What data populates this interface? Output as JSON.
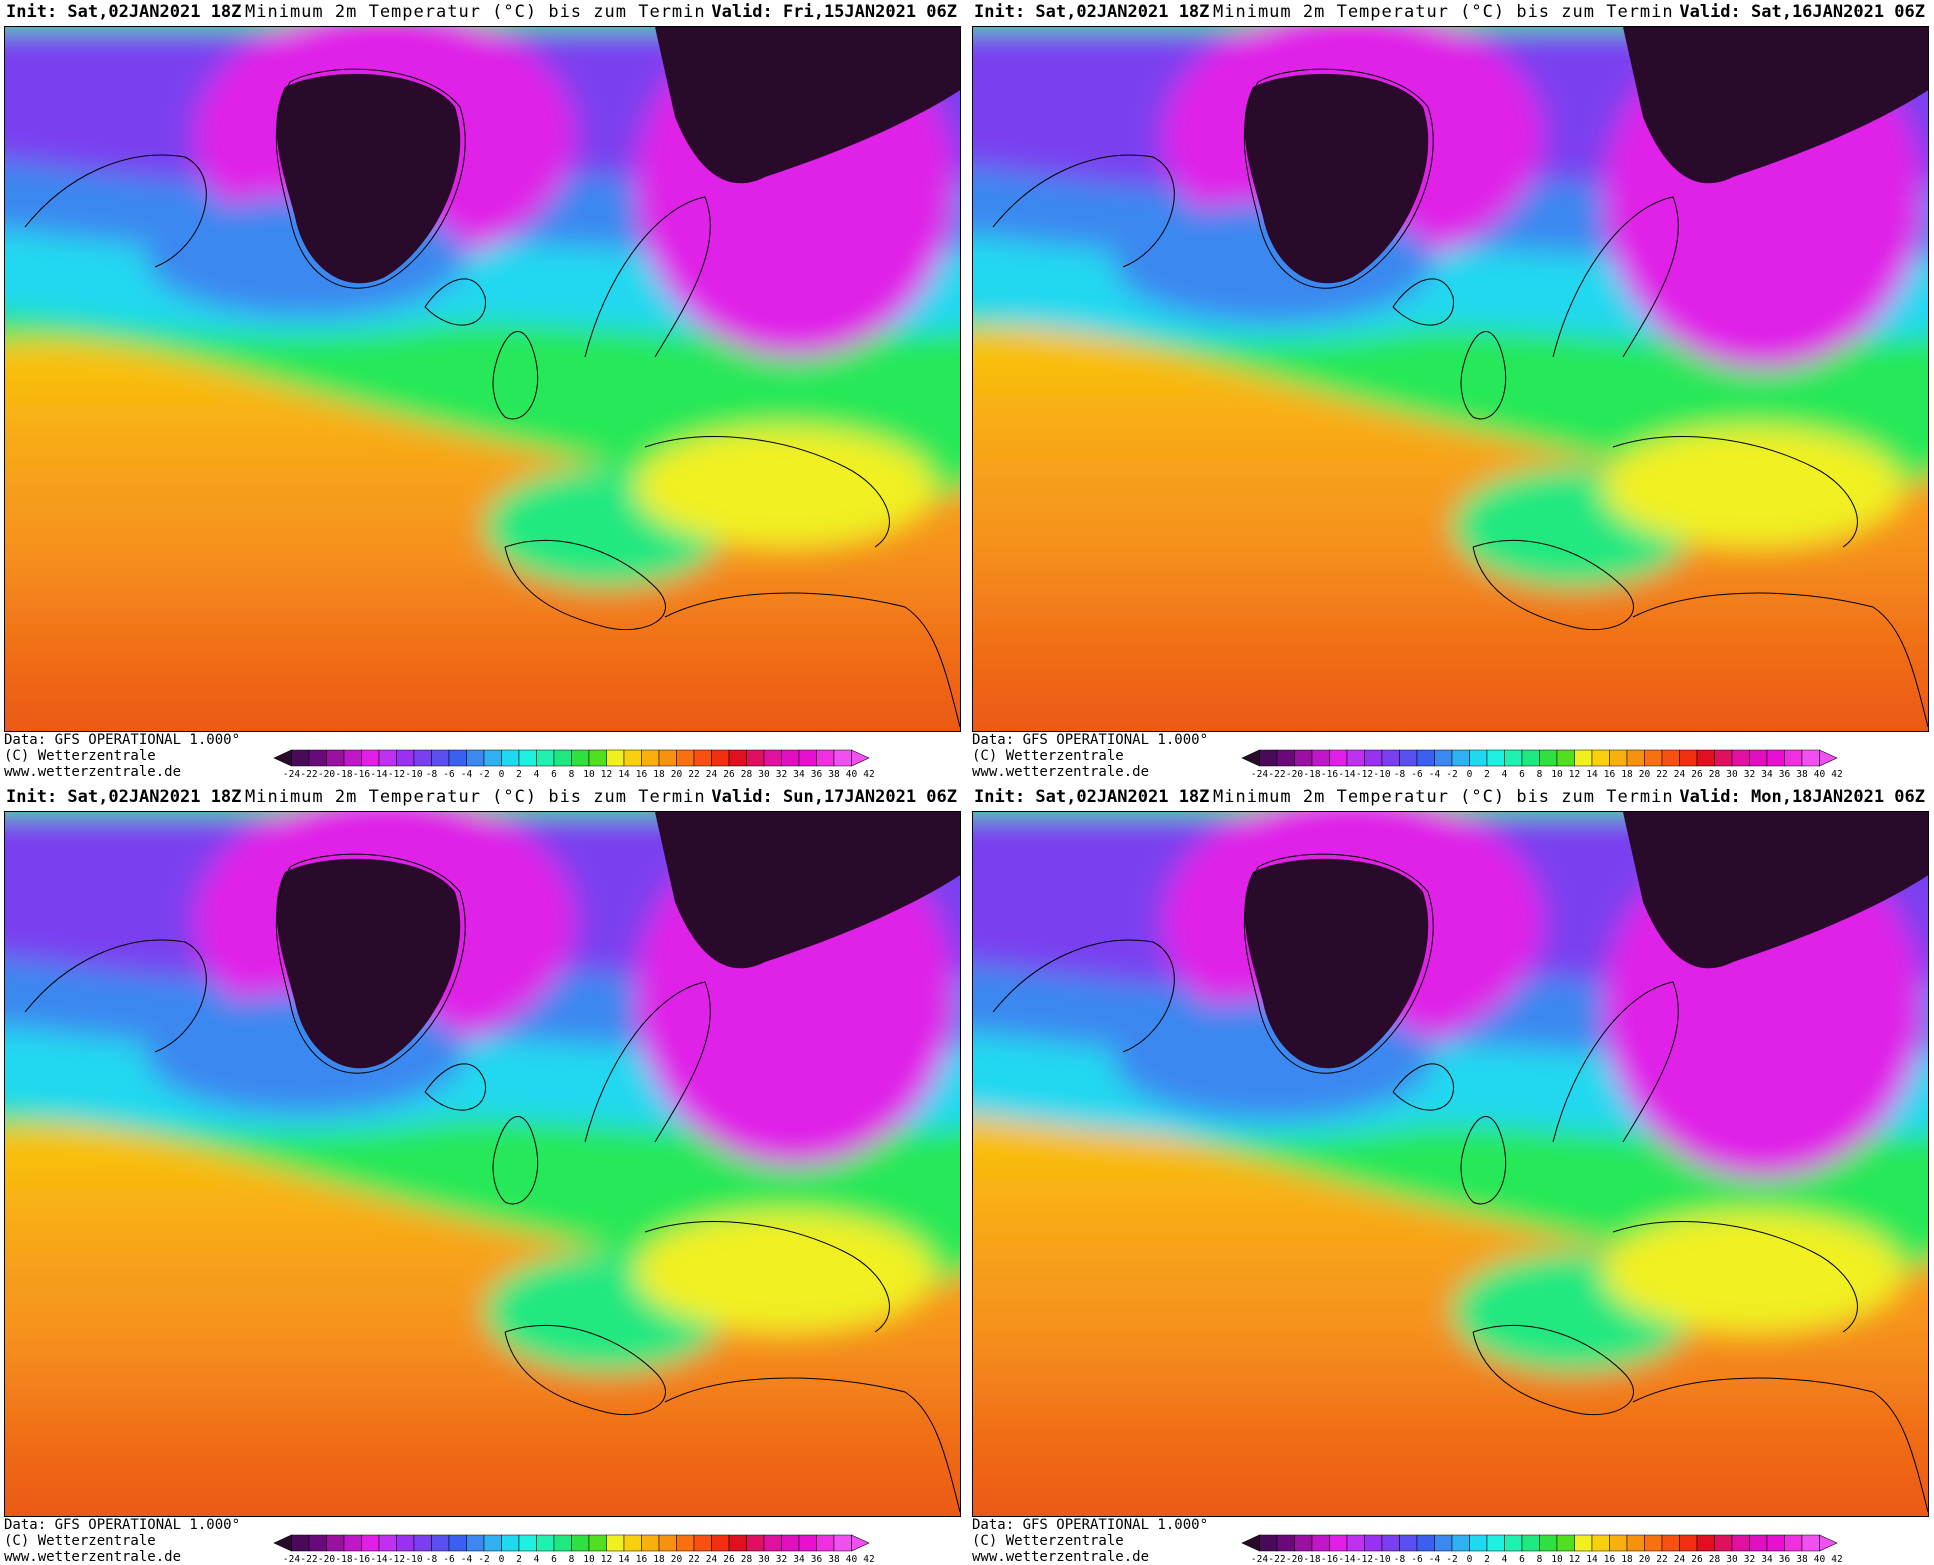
{
  "panels": [
    {
      "init": "Init: Sat,02JAN2021 18Z",
      "title": "Minimum 2m Temperatur (°C) bis zum Termin",
      "valid": "Valid: Fri,15JAN2021 06Z",
      "variant": 0
    },
    {
      "init": "Init: Sat,02JAN2021 18Z",
      "title": "Minimum 2m Temperatur (°C) bis zum Termin",
      "valid": "Valid: Sat,16JAN2021 06Z",
      "variant": 1
    },
    {
      "init": "Init: Sat,02JAN2021 18Z",
      "title": "Minimum 2m Temperatur (°C) bis zum Termin",
      "valid": "Valid: Sun,17JAN2021 06Z",
      "variant": 2
    },
    {
      "init": "Init: Sat,02JAN2021 18Z",
      "title": "Minimum 2m Temperatur (°C) bis zum Termin",
      "valid": "Valid: Mon,18JAN2021 06Z",
      "variant": 3
    }
  ],
  "footer": {
    "data": "Data: GFS OPERATIONAL 1.000°",
    "copyright": "(C) Wetterzentrale",
    "url": "www.wetterzentrale.de"
  },
  "colorbar": {
    "ticks": [
      "-24",
      "-22",
      "-20",
      "-18",
      "-16",
      "-14",
      "-12",
      "-10",
      "-8",
      "-6",
      "-4",
      "-2",
      "0",
      "2",
      "4",
      "6",
      "8",
      "10",
      "12",
      "14",
      "16",
      "18",
      "20",
      "22",
      "24",
      "26",
      "28",
      "30",
      "32",
      "34",
      "36",
      "38",
      "40",
      "42"
    ],
    "colors": [
      "#2a0a2a",
      "#4a0a5a",
      "#6a0a7a",
      "#9a10a0",
      "#c018c8",
      "#e020e8",
      "#c030f0",
      "#9a30f0",
      "#7a40f0",
      "#5a50f0",
      "#3a60f0",
      "#3a88f0",
      "#30b0f0",
      "#20d8f0",
      "#20f0e0",
      "#20f0b0",
      "#20e880",
      "#30e040",
      "#50e020",
      "#f0f020",
      "#f8d010",
      "#f8b010",
      "#f89010",
      "#f87010",
      "#f85010",
      "#f03010",
      "#e01020",
      "#e01060",
      "#e010a0",
      "#e010c0",
      "#e810d0",
      "#f030e0",
      "#f050f0"
    ]
  }
}
